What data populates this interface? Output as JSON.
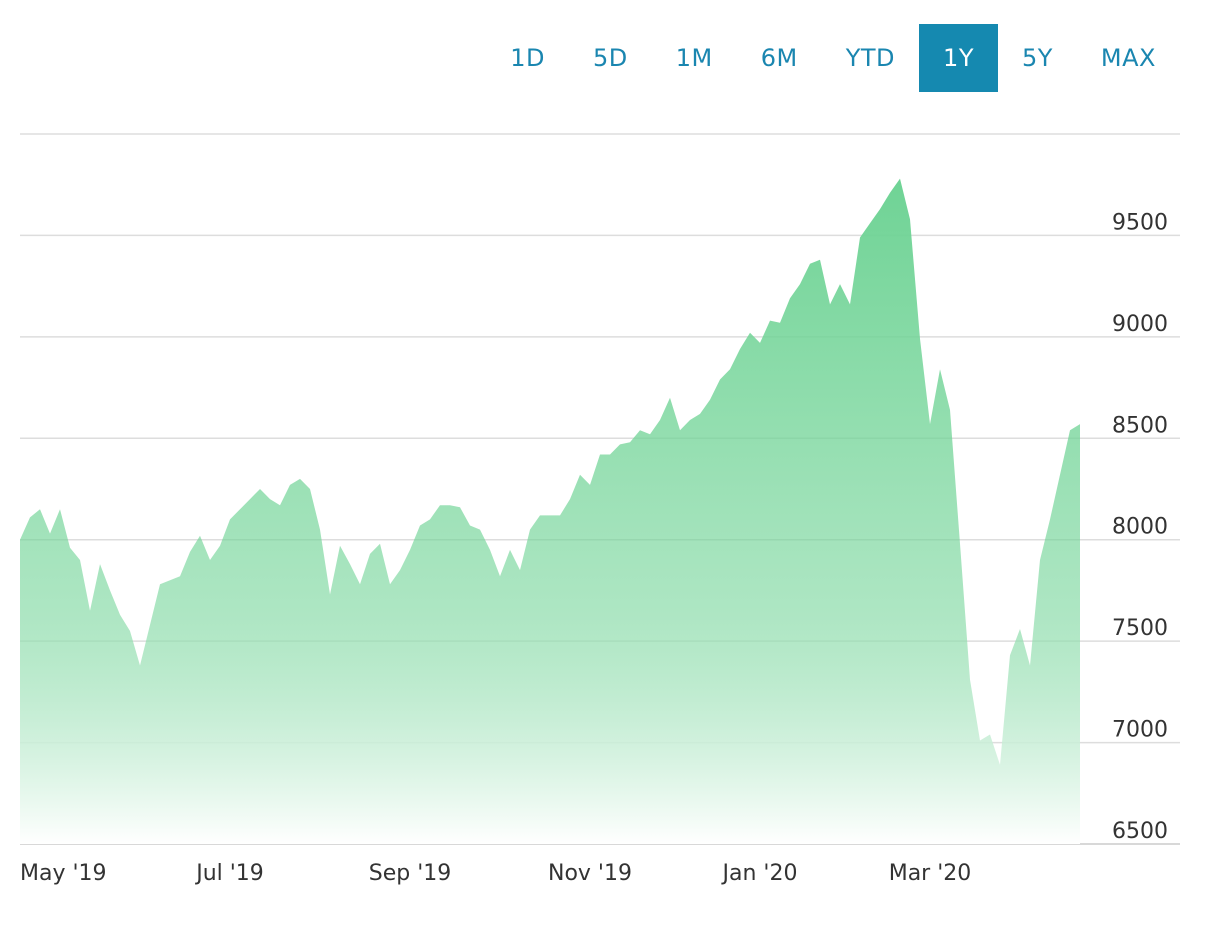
{
  "range_selector": {
    "options": [
      "1D",
      "5D",
      "1M",
      "6M",
      "YTD",
      "1Y",
      "5Y",
      "MAX"
    ],
    "active": "1Y"
  },
  "chart_data": {
    "type": "area",
    "color": "#6fd395",
    "categories": [
      "May '19",
      null,
      null,
      null,
      null,
      null,
      null,
      null,
      null,
      null,
      null,
      null,
      null,
      null,
      null,
      null,
      null,
      null,
      null,
      null,
      null,
      "Jul '19",
      null,
      null,
      null,
      null,
      null,
      null,
      null,
      null,
      null,
      null,
      null,
      null,
      null,
      null,
      null,
      null,
      null,
      "Sep '19",
      null,
      null,
      null,
      null,
      null,
      null,
      null,
      null,
      null,
      null,
      null,
      null,
      null,
      null,
      null,
      null,
      null,
      "Nov '19",
      null,
      null,
      null,
      null,
      null,
      null,
      null,
      null,
      null,
      null,
      null,
      null,
      null,
      null,
      null,
      null,
      "Jan '20",
      null,
      null,
      null,
      null,
      null,
      null,
      null,
      null,
      null,
      null,
      null,
      null,
      null,
      null,
      null,
      null,
      "Mar '20",
      null,
      null,
      null,
      null,
      null,
      null,
      null,
      null,
      null,
      null,
      null,
      null,
      null,
      null,
      null
    ],
    "values": [
      8000,
      8110,
      8150,
      8030,
      8150,
      7960,
      7900,
      7650,
      7880,
      7750,
      7630,
      7550,
      7380,
      7580,
      7780,
      7800,
      7820,
      7940,
      8020,
      7900,
      7970,
      8100,
      8150,
      8200,
      8250,
      8200,
      8170,
      8270,
      8300,
      8250,
      8050,
      7730,
      7970,
      7880,
      7780,
      7930,
      7980,
      7780,
      7850,
      7950,
      8070,
      8100,
      8170,
      8170,
      8160,
      8070,
      8050,
      7950,
      7820,
      7950,
      7850,
      8050,
      8120,
      8120,
      8120,
      8200,
      8320,
      8270,
      8420,
      8420,
      8470,
      8480,
      8540,
      8520,
      8590,
      8700,
      8540,
      8590,
      8620,
      8690,
      8790,
      8840,
      8940,
      9020,
      8970,
      9080,
      9070,
      9190,
      9260,
      9360,
      9380,
      9160,
      9260,
      9160,
      9490,
      9560,
      9630,
      9710,
      9780,
      9580,
      8990,
      8570,
      8840,
      8640,
      7980,
      7310,
      7010,
      7040,
      6890,
      7430,
      7560,
      7380,
      7900,
      8100,
      8320,
      8540,
      8570
    ],
    "ylim": [
      6500,
      10000
    ],
    "yticks": [
      6500,
      7000,
      7500,
      8000,
      8500,
      9000,
      9500
    ],
    "grid": true
  }
}
